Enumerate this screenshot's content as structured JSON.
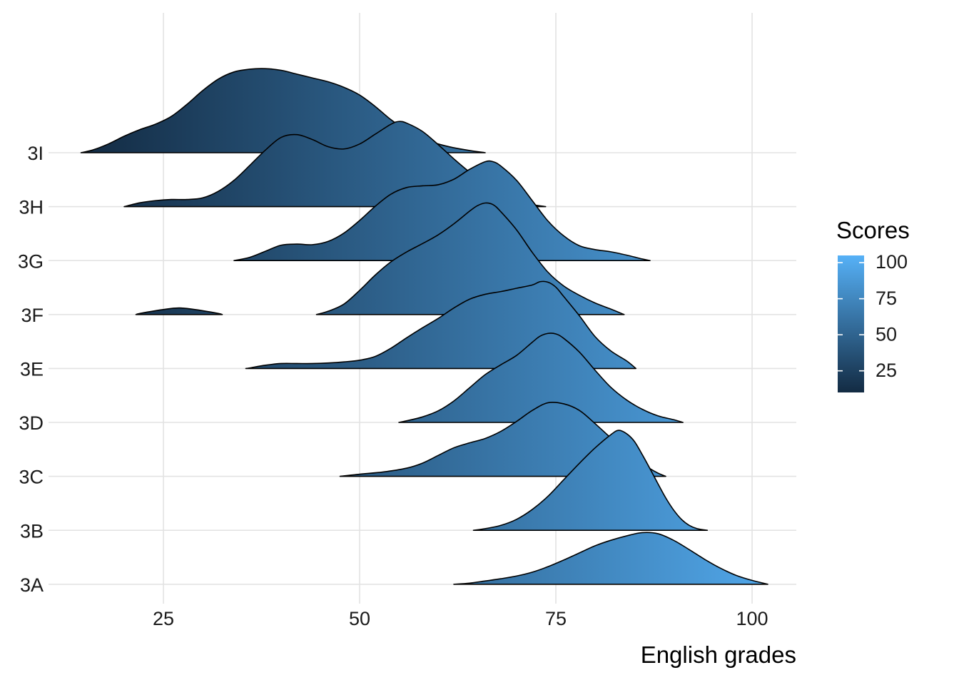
{
  "chart_data": {
    "type": "ridgeline",
    "xlabel": "English grades",
    "ylabel": "",
    "xlim": [
      10,
      105
    ],
    "x_ticks": [
      25,
      50,
      75,
      100
    ],
    "fill_gradient": {
      "low": "#132B43",
      "high": "#56B1F7",
      "range": [
        10,
        105
      ]
    },
    "legend": {
      "title": "Scores",
      "position": "right",
      "ticks": [
        100,
        75,
        50,
        25
      ],
      "range": [
        10,
        105
      ]
    },
    "grid": true,
    "series": [
      {
        "name": "3A",
        "points": [
          [
            62.0,
            0.0
          ],
          [
            64,
            0.02
          ],
          [
            66,
            0.06
          ],
          [
            68,
            0.1
          ],
          [
            70,
            0.15
          ],
          [
            72,
            0.22
          ],
          [
            74,
            0.32
          ],
          [
            76,
            0.44
          ],
          [
            78,
            0.57
          ],
          [
            80,
            0.7
          ],
          [
            82,
            0.8
          ],
          [
            84,
            0.88
          ],
          [
            86,
            0.94
          ],
          [
            88,
            0.92
          ],
          [
            90,
            0.8
          ],
          [
            92,
            0.63
          ],
          [
            94,
            0.45
          ],
          [
            96,
            0.29
          ],
          [
            98,
            0.16
          ],
          [
            100,
            0.07
          ],
          [
            102,
            0.0
          ]
        ]
      },
      {
        "name": "3B",
        "points": [
          [
            64.5,
            0.0
          ],
          [
            66,
            0.03
          ],
          [
            68,
            0.09
          ],
          [
            70,
            0.2
          ],
          [
            72,
            0.38
          ],
          [
            74,
            0.62
          ],
          [
            76,
            0.92
          ],
          [
            78,
            1.22
          ],
          [
            80,
            1.5
          ],
          [
            82,
            1.74
          ],
          [
            83,
            1.82
          ],
          [
            84,
            1.76
          ],
          [
            85,
            1.62
          ],
          [
            86,
            1.38
          ],
          [
            87,
            1.12
          ],
          [
            88,
            0.85
          ],
          [
            89,
            0.59
          ],
          [
            90,
            0.37
          ],
          [
            91,
            0.2
          ],
          [
            92,
            0.09
          ],
          [
            93,
            0.03
          ],
          [
            94.3,
            0.0
          ]
        ]
      },
      {
        "name": "3C",
        "points": [
          [
            47.5,
            0.0
          ],
          [
            50,
            0.04
          ],
          [
            53,
            0.08
          ],
          [
            56,
            0.15
          ],
          [
            58,
            0.24
          ],
          [
            60,
            0.38
          ],
          [
            62,
            0.52
          ],
          [
            64,
            0.61
          ],
          [
            66,
            0.69
          ],
          [
            68,
            0.82
          ],
          [
            70,
            1.0
          ],
          [
            72,
            1.2
          ],
          [
            74,
            1.34
          ],
          [
            76,
            1.32
          ],
          [
            78,
            1.2
          ],
          [
            80,
            0.96
          ],
          [
            82,
            0.7
          ],
          [
            84,
            0.45
          ],
          [
            86,
            0.24
          ],
          [
            87,
            0.14
          ],
          [
            88,
            0.06
          ],
          [
            89,
            0.0
          ]
        ]
      },
      {
        "name": "3D",
        "points": [
          [
            55.0,
            0.0
          ],
          [
            56,
            0.03
          ],
          [
            58,
            0.1
          ],
          [
            60,
            0.21
          ],
          [
            62,
            0.39
          ],
          [
            64,
            0.63
          ],
          [
            66,
            0.87
          ],
          [
            68,
            1.05
          ],
          [
            70,
            1.22
          ],
          [
            72,
            1.46
          ],
          [
            73,
            1.57
          ],
          [
            74,
            1.62
          ],
          [
            75,
            1.61
          ],
          [
            76,
            1.53
          ],
          [
            78,
            1.28
          ],
          [
            80,
            0.95
          ],
          [
            82,
            0.64
          ],
          [
            84,
            0.41
          ],
          [
            86,
            0.24
          ],
          [
            88,
            0.12
          ],
          [
            90,
            0.05
          ],
          [
            91.2,
            0.0
          ]
        ]
      },
      {
        "name": "3E",
        "points": [
          [
            35.5,
            0.0
          ],
          [
            36,
            0.01
          ],
          [
            38,
            0.06
          ],
          [
            40,
            0.09
          ],
          [
            42,
            0.09
          ],
          [
            44,
            0.09
          ],
          [
            46,
            0.1
          ],
          [
            48,
            0.12
          ],
          [
            50,
            0.15
          ],
          [
            52,
            0.22
          ],
          [
            54,
            0.37
          ],
          [
            56,
            0.56
          ],
          [
            58,
            0.74
          ],
          [
            60,
            0.91
          ],
          [
            62,
            1.1
          ],
          [
            64,
            1.26
          ],
          [
            66,
            1.35
          ],
          [
            68,
            1.4
          ],
          [
            70,
            1.46
          ],
          [
            72,
            1.52
          ],
          [
            73,
            1.58
          ],
          [
            74,
            1.57
          ],
          [
            75,
            1.48
          ],
          [
            76,
            1.31
          ],
          [
            78,
            0.96
          ],
          [
            80,
            0.58
          ],
          [
            82,
            0.32
          ],
          [
            84,
            0.14
          ],
          [
            85.2,
            0.0
          ]
        ]
      },
      {
        "name": "3F",
        "parts": [
          [
            [
              21.5,
              0.0
            ],
            [
              22,
              0.02
            ],
            [
              24,
              0.07
            ],
            [
              26,
              0.11
            ],
            [
              27,
              0.12
            ],
            [
              28,
              0.11
            ],
            [
              30,
              0.07
            ],
            [
              32,
              0.02
            ],
            [
              32.5,
              0.0
            ]
          ],
          [
            [
              44.5,
              0.0
            ],
            [
              46,
              0.06
            ],
            [
              48,
              0.19
            ],
            [
              50,
              0.44
            ],
            [
              52,
              0.72
            ],
            [
              54,
              0.96
            ],
            [
              56,
              1.14
            ],
            [
              58,
              1.29
            ],
            [
              60,
              1.45
            ],
            [
              62,
              1.65
            ],
            [
              64,
              1.88
            ],
            [
              65,
              1.98
            ],
            [
              66,
              2.03
            ],
            [
              67,
              2.0
            ],
            [
              68,
              1.87
            ],
            [
              70,
              1.54
            ],
            [
              72,
              1.13
            ],
            [
              74,
              0.77
            ],
            [
              76,
              0.52
            ],
            [
              78,
              0.35
            ],
            [
              80,
              0.21
            ],
            [
              82,
              0.1
            ],
            [
              83.7,
              0.0
            ]
          ]
        ]
      },
      {
        "name": "3G",
        "points": [
          [
            34.0,
            0.0
          ],
          [
            36,
            0.06
          ],
          [
            38,
            0.17
          ],
          [
            40,
            0.28
          ],
          [
            42,
            0.3
          ],
          [
            44,
            0.29
          ],
          [
            46,
            0.35
          ],
          [
            48,
            0.5
          ],
          [
            50,
            0.73
          ],
          [
            52,
            0.99
          ],
          [
            54,
            1.21
          ],
          [
            56,
            1.33
          ],
          [
            58,
            1.36
          ],
          [
            60,
            1.38
          ],
          [
            62,
            1.48
          ],
          [
            64,
            1.66
          ],
          [
            66,
            1.8
          ],
          [
            67,
            1.8
          ],
          [
            68,
            1.72
          ],
          [
            70,
            1.46
          ],
          [
            72,
            1.09
          ],
          [
            74,
            0.72
          ],
          [
            76,
            0.45
          ],
          [
            78,
            0.27
          ],
          [
            80,
            0.2
          ],
          [
            82,
            0.16
          ],
          [
            84,
            0.1
          ],
          [
            86,
            0.03
          ],
          [
            87,
            0.0
          ]
        ]
      },
      {
        "name": "3H",
        "points": [
          [
            20.0,
            0.0
          ],
          [
            22,
            0.07
          ],
          [
            24,
            0.11
          ],
          [
            26,
            0.13
          ],
          [
            28,
            0.13
          ],
          [
            30,
            0.16
          ],
          [
            32,
            0.28
          ],
          [
            34,
            0.48
          ],
          [
            36,
            0.75
          ],
          [
            38,
            1.03
          ],
          [
            40,
            1.26
          ],
          [
            42,
            1.31
          ],
          [
            44,
            1.22
          ],
          [
            46,
            1.09
          ],
          [
            48,
            1.05
          ],
          [
            50,
            1.14
          ],
          [
            52,
            1.32
          ],
          [
            54,
            1.5
          ],
          [
            55,
            1.55
          ],
          [
            56,
            1.52
          ],
          [
            58,
            1.37
          ],
          [
            60,
            1.13
          ],
          [
            62,
            0.87
          ],
          [
            64,
            0.63
          ],
          [
            66,
            0.42
          ],
          [
            68,
            0.25
          ],
          [
            70,
            0.12
          ],
          [
            72,
            0.04
          ],
          [
            73.7,
            0.0
          ]
        ]
      },
      {
        "name": "3I",
        "points": [
          [
            14.5,
            0.0
          ],
          [
            16,
            0.05
          ],
          [
            18,
            0.16
          ],
          [
            20,
            0.3
          ],
          [
            22,
            0.42
          ],
          [
            24,
            0.52
          ],
          [
            26,
            0.66
          ],
          [
            28,
            0.88
          ],
          [
            30,
            1.13
          ],
          [
            32,
            1.34
          ],
          [
            34,
            1.47
          ],
          [
            36,
            1.52
          ],
          [
            38,
            1.53
          ],
          [
            40,
            1.5
          ],
          [
            42,
            1.43
          ],
          [
            44,
            1.36
          ],
          [
            46,
            1.29
          ],
          [
            48,
            1.19
          ],
          [
            50,
            1.05
          ],
          [
            52,
            0.84
          ],
          [
            54,
            0.6
          ],
          [
            56,
            0.4
          ],
          [
            58,
            0.26
          ],
          [
            60,
            0.16
          ],
          [
            62,
            0.09
          ],
          [
            64,
            0.04
          ],
          [
            66,
            0.0
          ]
        ]
      }
    ]
  }
}
